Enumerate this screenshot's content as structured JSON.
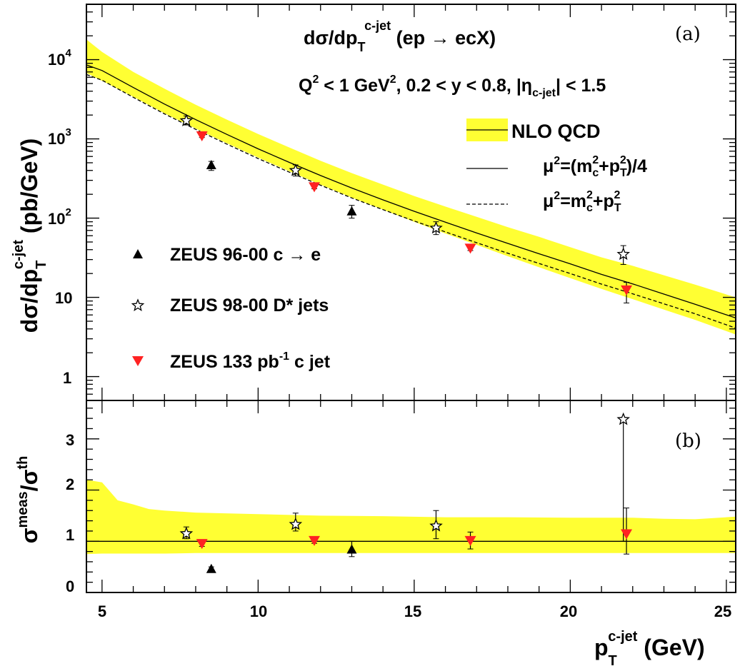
{
  "chart_data": [
    {
      "panel": "a",
      "type": "line",
      "title": "dσ/dp_T^c-jet (ep → ecX)",
      "cuts": "Q^2 < 1 GeV^2, 0.2 < y < 0.8, |η_c-jet| < 1.5",
      "xlabel": "p_T^c-jet (GeV)",
      "ylabel": "dσ/dp_T^c-jet (pb/GeV)",
      "xlim": [
        4.5,
        25.3
      ],
      "ylim": [
        0.5,
        50000
      ],
      "yscale": "log",
      "ytick_labels": [
        "1",
        "10",
        "10^2",
        "10^3",
        "10^4"
      ],
      "legend": [
        "NLO QCD",
        "μ^2=(m_c^2+p_T^2)/4",
        "μ^2=m_c^2+p_T^2"
      ],
      "band": {
        "name": "NLO QCD",
        "color": "#ffff33",
        "x": [
          4.5,
          5,
          6,
          7,
          8,
          9,
          10,
          11,
          12,
          13,
          14,
          15,
          16,
          17,
          18,
          19,
          20,
          21,
          22,
          23,
          24,
          25.3
        ],
        "upper": [
          18000,
          12500,
          7000,
          4300,
          2700,
          1750,
          1150,
          780,
          530,
          370,
          265,
          190,
          140,
          104,
          77,
          58,
          43,
          32,
          25,
          19,
          14.5,
          10
        ],
        "lower": [
          6800,
          5400,
          3400,
          2100,
          1350,
          880,
          580,
          390,
          265,
          182,
          128,
          90,
          64,
          46,
          33,
          24,
          17.5,
          12.8,
          9.5,
          7.0,
          5.2,
          3.4
        ]
      },
      "series": [
        {
          "name": "μ^2=(m_c^2+p_T^2)/4",
          "style": "solid",
          "x": [
            4.5,
            5,
            6,
            7,
            8,
            9,
            10,
            11,
            12,
            13,
            14,
            15,
            16,
            17,
            18,
            19,
            20,
            21,
            22,
            23,
            24,
            25.3
          ],
          "y": [
            8600,
            7300,
            4450,
            2750,
            1750,
            1140,
            750,
            505,
            345,
            240,
            170,
            122,
            89,
            65,
            48,
            35.5,
            26.5,
            19.5,
            14.8,
            11,
            8.2,
            5.5
          ]
        },
        {
          "name": "μ^2=m_c^2+p_T^2",
          "style": "dashed",
          "x": [
            4.5,
            5,
            6,
            7,
            8,
            9,
            10,
            11,
            12,
            13,
            14,
            15,
            16,
            17,
            18,
            19,
            20,
            21,
            22,
            23,
            24,
            25.3
          ],
          "y": [
            6500,
            5500,
            3350,
            2070,
            1320,
            860,
            565,
            380,
            260,
            180,
            128,
            92,
            67,
            49,
            36,
            26.8,
            20,
            14.7,
            11.1,
            8.3,
            6.2,
            4.1
          ]
        },
        {
          "name": "ZEUS 96-00 c → e",
          "marker": "triangle-up",
          "color": "#000000",
          "x": [
            8.5,
            13.0
          ],
          "y": [
            460,
            120
          ],
          "ylo": [
            400,
            100
          ],
          "yhi": [
            520,
            145
          ]
        },
        {
          "name": "ZEUS 98-00 D* jets",
          "marker": "star",
          "color": "#000000",
          "x": [
            7.7,
            11.2,
            15.7,
            21.7
          ],
          "y": [
            1700,
            400,
            75,
            35
          ],
          "ylo": [
            1500,
            340,
            62,
            26
          ],
          "yhi": [
            1950,
            470,
            90,
            45
          ]
        },
        {
          "name": "ZEUS 133 pb^-1 c jet",
          "marker": "triangle-down",
          "color": "#ff2222",
          "x": [
            8.2,
            11.8,
            16.8,
            21.8
          ],
          "y": [
            1100,
            250,
            42,
            12.5
          ],
          "ylo": [
            1040,
            235,
            39,
            8.5
          ],
          "yhi": [
            1170,
            270,
            46,
            15.5
          ]
        }
      ]
    },
    {
      "panel": "b",
      "type": "line",
      "xlabel": "p_T^c-jet (GeV)",
      "ylabel": "σ^meas/σ^th",
      "xlim": [
        4.5,
        25.3
      ],
      "ylim": [
        0,
        3.75
      ],
      "xticks": [
        5,
        10,
        15,
        20,
        25
      ],
      "yticks": [
        0,
        1,
        2,
        3
      ],
      "band": {
        "name": "NLO QCD",
        "color": "#ffff33",
        "x": [
          4.5,
          5,
          5.5,
          6,
          6.5,
          7,
          8,
          10,
          12,
          14,
          16,
          18,
          20,
          22,
          23,
          24,
          25.3
        ],
        "upper": [
          2.2,
          2.15,
          1.8,
          1.72,
          1.63,
          1.6,
          1.56,
          1.53,
          1.5,
          1.49,
          1.47,
          1.47,
          1.46,
          1.46,
          1.44,
          1.43,
          1.48
        ],
        "lower": [
          0.75,
          0.76,
          0.76,
          0.76,
          0.76,
          0.76,
          0.77,
          0.77,
          0.77,
          0.77,
          0.77,
          0.77,
          0.77,
          0.77,
          0.77,
          0.77,
          0.77
        ]
      },
      "series": [
        {
          "name": "NLO QCD",
          "style": "solid",
          "x": [
            4.5,
            25.3
          ],
          "y": [
            1,
            1
          ]
        },
        {
          "name": "ZEUS 96-00 c → e",
          "marker": "triangle-up",
          "color": "#000000",
          "x": [
            8.5,
            13.0
          ],
          "y": [
            0.45,
            0.83
          ],
          "ylo": [
            0.4,
            0.7
          ],
          "yhi": [
            0.5,
            1.0
          ]
        },
        {
          "name": "ZEUS 98-00 D* jets",
          "marker": "star",
          "color": "#000000",
          "x": [
            7.7,
            11.2,
            15.7,
            21.7
          ],
          "y": [
            1.15,
            1.33,
            1.3,
            3.38
          ],
          "ylo": [
            1.05,
            1.2,
            1.05,
            1.0
          ],
          "yhi": [
            1.28,
            1.55,
            1.6,
            3.38
          ]
        },
        {
          "name": "ZEUS 133 pb^-1 c jet",
          "marker": "triangle-down",
          "color": "#ff2222",
          "x": [
            8.2,
            11.8,
            16.8,
            21.8
          ],
          "y": [
            0.96,
            1.02,
            1.02,
            1.15
          ],
          "ylo": [
            0.9,
            0.96,
            0.85,
            0.75
          ],
          "yhi": [
            1.02,
            1.08,
            1.18,
            1.65
          ]
        }
      ]
    }
  ]
}
